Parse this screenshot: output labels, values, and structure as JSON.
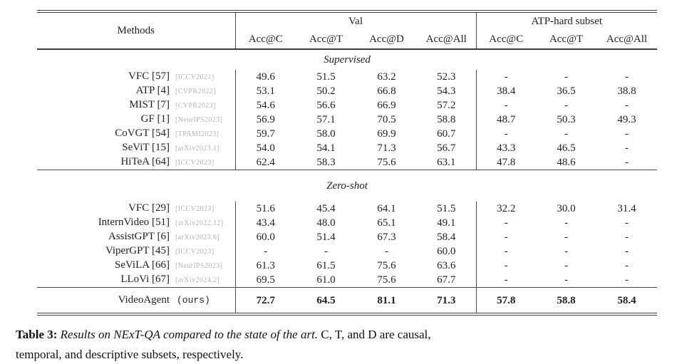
{
  "colors": {
    "text_dark": "#1f1f1f",
    "rule_dark": "#3c3c3c",
    "rule_mid": "#4a4a4a",
    "venue_gray": "#b3b3b3"
  },
  "table": {
    "header": {
      "methods": "Methods",
      "groups": [
        {
          "label": "Val",
          "cols": [
            "Acc@C",
            "Acc@T",
            "Acc@D",
            "Acc@All"
          ]
        },
        {
          "label": "ATP-hard subset",
          "cols": [
            "Acc@C",
            "Acc@T",
            "Acc@All"
          ]
        }
      ]
    },
    "sections": [
      {
        "title": "Supervised",
        "rows": [
          {
            "method": "VFC [57]",
            "venue": "[ICCV2021]",
            "values": [
              "49.6",
              "51.5",
              "63.2",
              "52.3",
              "-",
              "-",
              "-"
            ]
          },
          {
            "method": "ATP [4]",
            "venue": "[CVPR2022]",
            "values": [
              "53.1",
              "50.2",
              "66.8",
              "54.3",
              "38.4",
              "36.5",
              "38.8"
            ]
          },
          {
            "method": "MIST [7]",
            "venue": "[CVPR2023]",
            "values": [
              "54.6",
              "56.6",
              "66.9",
              "57.2",
              "-",
              "-",
              "-"
            ]
          },
          {
            "method": "GF [1]",
            "venue": "[NeurIPS2023]",
            "values": [
              "56.9",
              "57.1",
              "70.5",
              "58.8",
              "48.7",
              "50.3",
              "49.3"
            ]
          },
          {
            "method": "CoVGT [54]",
            "venue": "[TPAMI2023]",
            "values": [
              "59.7",
              "58.0",
              "69.9",
              "60.7",
              "-",
              "-",
              "-"
            ]
          },
          {
            "method": "SeViT [15]",
            "venue": "[arXiv2023.1]",
            "values": [
              "54.0",
              "54.1",
              "71.3",
              "56.7",
              "43.3",
              "46.5",
              "-"
            ]
          },
          {
            "method": "HiTeA [64]",
            "venue": "[ICCV2023]",
            "values": [
              "62.4",
              "58.3",
              "75.6",
              "63.1",
              "47.8",
              "48.6",
              "-"
            ]
          }
        ]
      },
      {
        "title": "Zero-shot",
        "rows": [
          {
            "method": "VFC [29]",
            "venue": "[ICCV2023]",
            "values": [
              "51.6",
              "45.4",
              "64.1",
              "51.5",
              "32.2",
              "30.0",
              "31.4"
            ]
          },
          {
            "method": "InternVideo [51]",
            "venue": "[arXiv2022.12]",
            "values": [
              "43.4",
              "48.0",
              "65.1",
              "49.1",
              "-",
              "-",
              "-"
            ]
          },
          {
            "method": "AssistGPT [6]",
            "venue": "[arXiv2023.6]",
            "values": [
              "60.0",
              "51.4",
              "67.3",
              "58.4",
              "-",
              "-",
              "-"
            ]
          },
          {
            "method": "ViperGPT [45]",
            "venue": "[ICCV2023]",
            "values": [
              "-",
              "-",
              "-",
              "60.0",
              "-",
              "-",
              "-"
            ]
          },
          {
            "method": "SeViLA [66]",
            "venue": "[NeurIPS2023]",
            "values": [
              "61.3",
              "61.5",
              "75.6",
              "63.6",
              "-",
              "-",
              "-"
            ]
          },
          {
            "method": "LLoVi [67]",
            "venue": "[arXiv2024.2]",
            "values": [
              "69.5",
              "61.0",
              "75.6",
              "67.7",
              "-",
              "-",
              "-"
            ]
          }
        ]
      }
    ],
    "final_row": {
      "method": "VideoAgent",
      "suffix": "(ours)",
      "values": [
        "72.7",
        "64.5",
        "81.1",
        "71.3",
        "57.8",
        "58.8",
        "58.4"
      ]
    }
  },
  "caption": {
    "label": "Table 3:",
    "italic": " Results on NExT-QA compared to the state of the art.",
    "rest_line1": " C, T, and D are causal,",
    "rest_line2": "temporal, and descriptive subsets, respectively."
  }
}
